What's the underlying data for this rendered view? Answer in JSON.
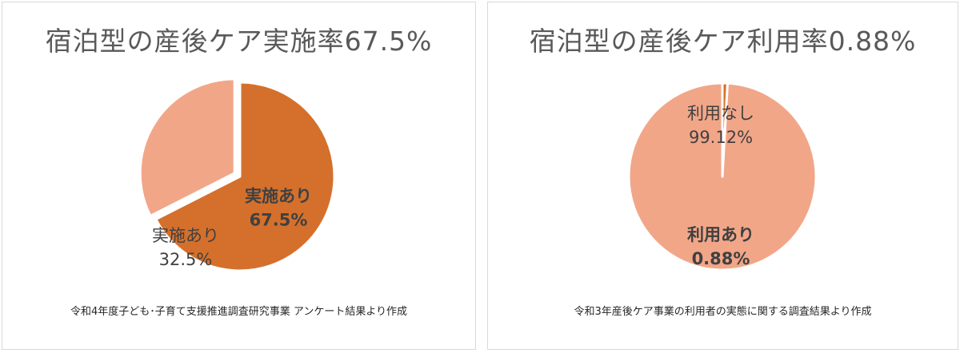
{
  "charts": [
    {
      "title": "宿泊型の産後ケア実施率67.5%",
      "note": "令和4年度子ども･子育て支援推進調査研究事業  アンケート結果より作成",
      "chart_data": {
        "type": "pie",
        "title": "宿泊型の産後ケア実施率67.5%",
        "slices": [
          {
            "label": "実施あり",
            "value": 67.5,
            "value_label": "67.5%",
            "color": "#D4702C",
            "bold": true
          },
          {
            "label": "実施あり",
            "value": 32.5,
            "value_label": "32.5%",
            "color": "#F2A688",
            "bold": false
          }
        ]
      }
    },
    {
      "title": "宿泊型の産後ケア利用率0.88%",
      "note": "令和3年産後ケア事業の利用者の実態に関する調査結果より作成",
      "chart_data": {
        "type": "pie",
        "title": "宿泊型の産後ケア利用率0.88%",
        "slices": [
          {
            "label": "利用あり",
            "value": 0.88,
            "value_label": "0.88%",
            "color": "#D4702C",
            "bold": true
          },
          {
            "label": "利用なし",
            "value": 99.12,
            "value_label": "99.12%",
            "color": "#F2A688",
            "bold": false
          }
        ]
      }
    }
  ]
}
